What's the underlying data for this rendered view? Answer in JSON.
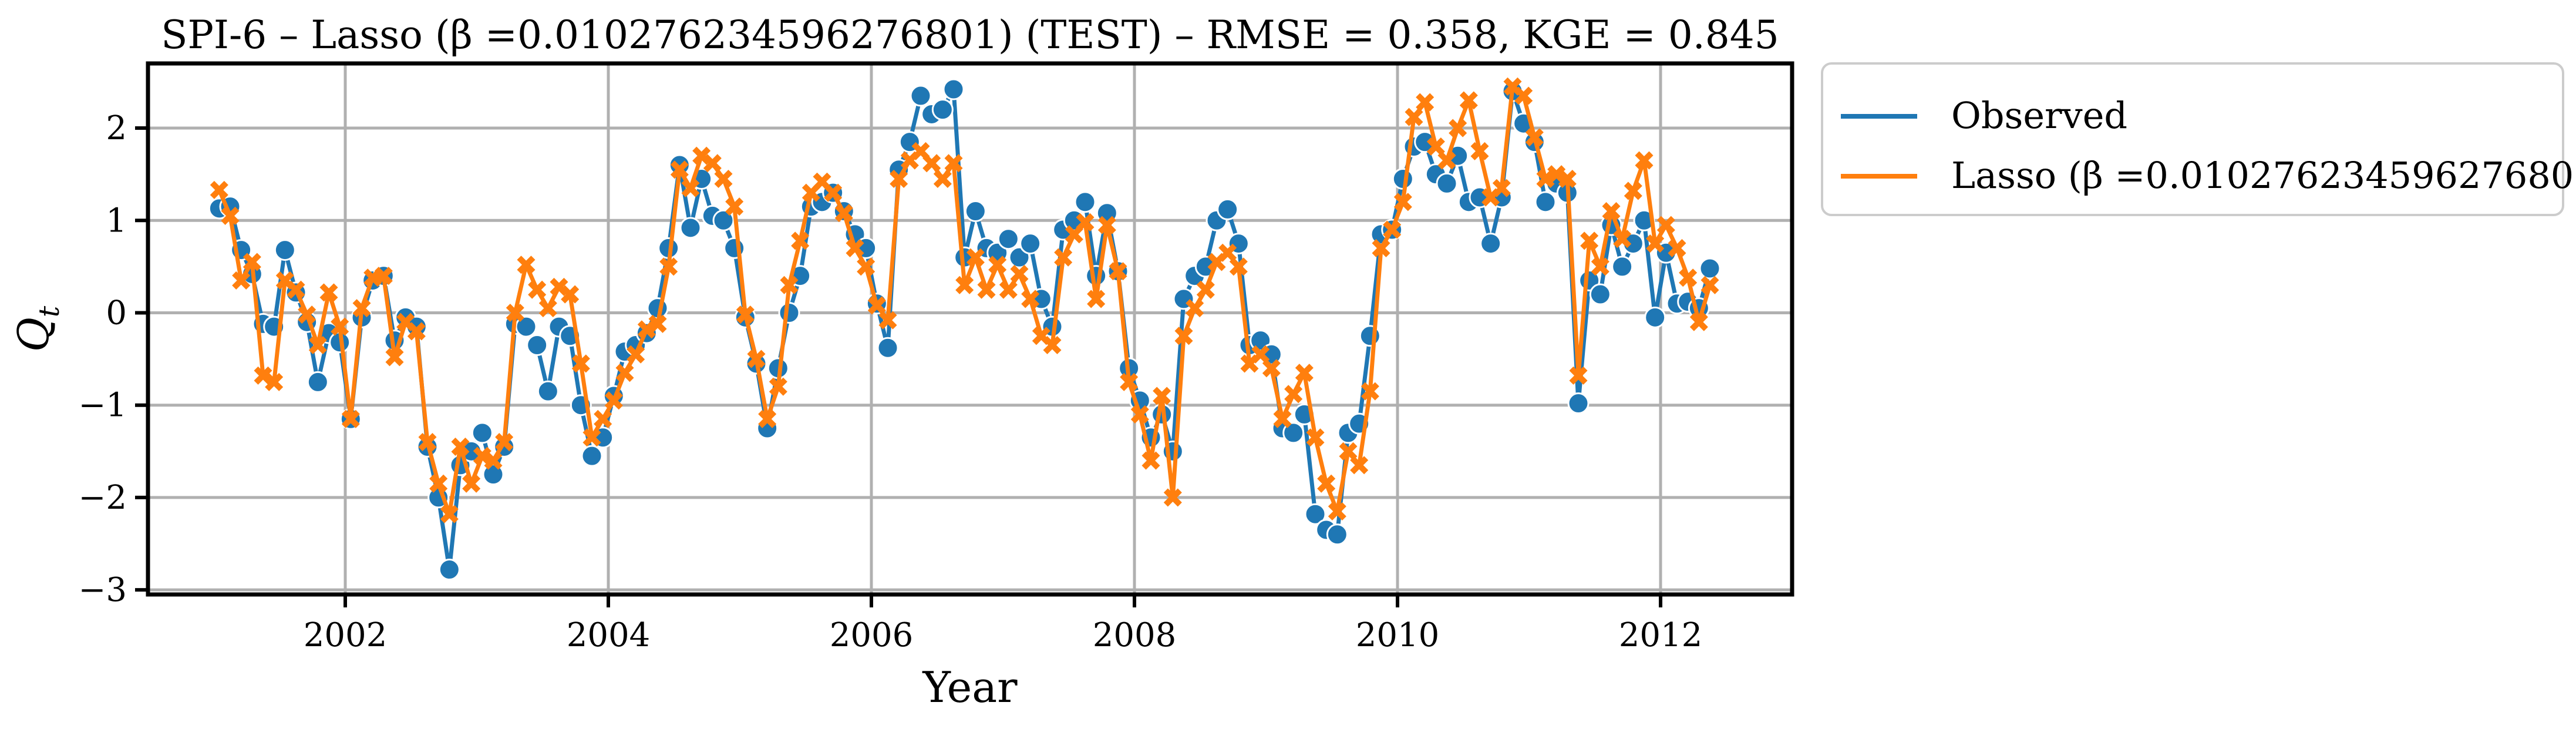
{
  "chart_data": {
    "type": "line",
    "title": "SPI-6 – Lasso (β =0.010276234596276801) (TEST) – RMSE = 0.358, KGE = 0.845",
    "xlabel": "Year",
    "ylabel": "Q",
    "ylabel_sub": "t",
    "xlim": [
      2000.5,
      2013.0
    ],
    "ylim": [
      -3.05,
      2.7
    ],
    "xticks": [
      2002,
      2004,
      2006,
      2008,
      2010,
      2012
    ],
    "xtick_labels": [
      "2002",
      "2004",
      "2006",
      "2008",
      "2010",
      "2012"
    ],
    "yticks": [
      -3,
      -2,
      -1,
      0,
      1,
      2
    ],
    "ytick_labels": [
      "−3",
      "−2",
      "−1",
      "0",
      "1",
      "2"
    ],
    "grid": true,
    "legend_position": "outside-right",
    "x_start": "2001-01",
    "x_step": "1 month",
    "series": [
      {
        "name": "Observed",
        "color": "#1f77b4",
        "marker": "circle",
        "values": [
          1.13,
          1.15,
          0.68,
          0.42,
          -0.12,
          -0.15,
          0.68,
          0.22,
          -0.1,
          -0.75,
          -0.22,
          -0.32,
          -1.15,
          -0.05,
          0.35,
          0.4,
          -0.3,
          -0.05,
          -0.15,
          -1.45,
          -2.0,
          -2.78,
          -1.65,
          -1.5,
          -1.3,
          -1.75,
          -1.45,
          -0.12,
          -0.15,
          -0.35,
          -0.85,
          -0.15,
          -0.25,
          -1.0,
          -1.55,
          -1.35,
          -0.9,
          -0.42,
          -0.35,
          -0.22,
          0.05,
          0.7,
          1.6,
          0.92,
          1.45,
          1.05,
          1.0,
          0.7,
          -0.05,
          -0.55,
          -1.25,
          -0.6,
          0.0,
          0.4,
          1.15,
          1.2,
          1.3,
          1.1,
          0.85,
          0.7,
          0.1,
          -0.38,
          1.55,
          1.85,
          2.35,
          2.15,
          2.2,
          2.42,
          0.6,
          1.1,
          0.7,
          0.65,
          0.8,
          0.6,
          0.75,
          0.15,
          -0.15,
          0.9,
          1.0,
          1.2,
          0.4,
          1.08,
          0.45,
          -0.6,
          -0.95,
          -1.35,
          -1.1,
          -1.5,
          0.15,
          0.4,
          0.5,
          1.0,
          1.12,
          0.75,
          -0.35,
          -0.3,
          -0.45,
          -1.25,
          -1.3,
          -1.1,
          -2.18,
          -2.35,
          -2.4,
          -1.3,
          -1.2,
          -0.25,
          0.85,
          0.9,
          1.45,
          1.8,
          1.85,
          1.5,
          1.4,
          1.7,
          1.2,
          1.25,
          0.75,
          1.25,
          2.4,
          2.05,
          1.85,
          1.2,
          1.4,
          1.3,
          -0.98,
          0.35,
          0.2,
          0.95,
          0.5,
          0.75,
          1.0,
          -0.05,
          0.65,
          0.1,
          0.12,
          0.05,
          0.48
        ]
      },
      {
        "name": "Lasso (β =0.010276234596276801)",
        "color": "#ff7f0e",
        "marker": "x",
        "values": [
          1.33,
          1.05,
          0.35,
          0.55,
          -0.68,
          -0.75,
          0.35,
          0.25,
          -0.02,
          -0.35,
          0.22,
          -0.15,
          -1.15,
          0.05,
          0.38,
          0.4,
          -0.48,
          -0.1,
          -0.2,
          -1.4,
          -1.85,
          -2.18,
          -1.45,
          -1.85,
          -1.55,
          -1.6,
          -1.4,
          0.0,
          0.52,
          0.25,
          0.05,
          0.28,
          0.2,
          -0.55,
          -1.35,
          -1.15,
          -0.95,
          -0.65,
          -0.45,
          -0.18,
          -0.12,
          0.5,
          1.55,
          1.35,
          1.7,
          1.62,
          1.45,
          1.15,
          -0.02,
          -0.5,
          -1.15,
          -0.8,
          0.3,
          0.78,
          1.3,
          1.42,
          1.3,
          1.08,
          0.7,
          0.5,
          0.08,
          -0.08,
          1.45,
          1.65,
          1.75,
          1.62,
          1.45,
          1.62,
          0.3,
          0.6,
          0.25,
          0.52,
          0.25,
          0.42,
          0.15,
          -0.25,
          -0.35,
          0.6,
          0.85,
          0.98,
          0.15,
          0.95,
          0.45,
          -0.75,
          -1.1,
          -1.6,
          -0.9,
          -2.0,
          -0.25,
          0.05,
          0.25,
          0.55,
          0.65,
          0.5,
          -0.55,
          -0.45,
          -0.6,
          -1.15,
          -0.88,
          -0.65,
          -1.35,
          -1.85,
          -2.15,
          -1.5,
          -1.65,
          -0.85,
          0.7,
          0.9,
          1.2,
          2.12,
          2.28,
          1.8,
          1.65,
          2.0,
          2.3,
          1.75,
          1.25,
          1.35,
          2.45,
          2.35,
          1.9,
          1.45,
          1.5,
          1.45,
          -0.68,
          0.78,
          0.5,
          1.1,
          0.8,
          1.32,
          1.65,
          0.75,
          0.95,
          0.7,
          0.38,
          -0.1,
          0.3
        ]
      }
    ]
  }
}
